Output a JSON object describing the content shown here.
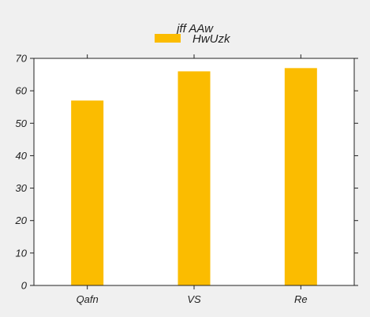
{
  "chart_data": {
    "type": "bar",
    "categories": [
      "Qafn",
      "VS",
      "Re"
    ],
    "series": [
      {
        "name": "HwUzk",
        "values": [
          57,
          66,
          67
        ],
        "color": "#fbbc00"
      }
    ],
    "legend_title": "jff AAw",
    "legend_position": "top-center",
    "ylim": [
      0,
      70
    ],
    "yticks": [
      0,
      10,
      20,
      30,
      40,
      50,
      60,
      70
    ],
    "xlabel": "",
    "ylabel": "",
    "grid": false,
    "colors": {
      "background": "#f0f0f0",
      "plot_area": "#ffffff",
      "axis": "#222222"
    }
  }
}
